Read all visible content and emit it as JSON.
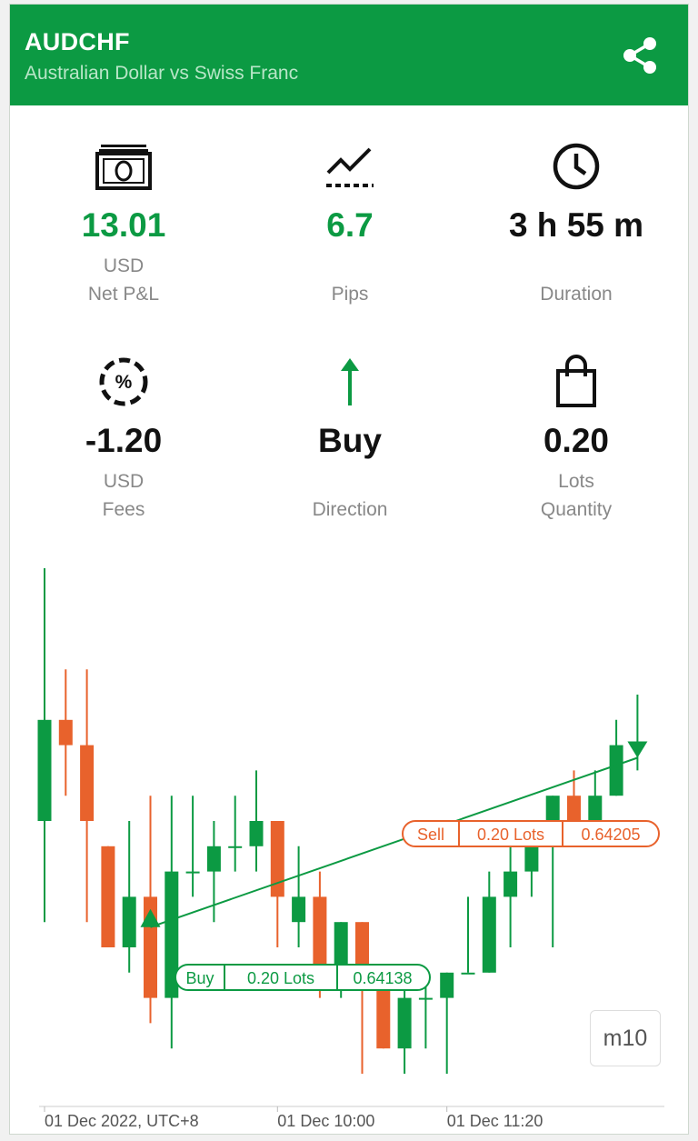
{
  "header": {
    "symbol": "AUDCHF",
    "description": "Australian Dollar vs Swiss Franc"
  },
  "colors": {
    "accent": "#0c9a43",
    "sell": "#e8622c",
    "buy": "#0c9a43"
  },
  "stats": {
    "net_pl": {
      "value": "13.01",
      "unit": "USD",
      "label": "Net P&L",
      "icon": "money-icon"
    },
    "pips": {
      "value": "6.7",
      "label": "Pips",
      "icon": "trend-icon"
    },
    "duration": {
      "value": "3 h 55 m",
      "label": "Duration",
      "icon": "clock-icon"
    },
    "fees": {
      "value": "-1.20",
      "unit": "USD",
      "label": "Fees",
      "icon": "percent-icon"
    },
    "direction": {
      "value": "Buy",
      "label": "Direction",
      "icon": "arrow-up-icon"
    },
    "quantity": {
      "value": "0.20",
      "unit": "Lots",
      "label": "Quantity",
      "icon": "bag-icon"
    }
  },
  "chart": {
    "timeframe": "m10",
    "x_labels": [
      "01 Dec 2022, UTC+8",
      "01 Dec 10:00",
      "01 Dec 11:20"
    ],
    "buy_marker": {
      "side": "Buy",
      "lots": "0.20 Lots",
      "price": "0.64138"
    },
    "sell_marker": {
      "side": "Sell",
      "lots": "0.20 Lots",
      "price": "0.64205"
    }
  },
  "chart_data": {
    "type": "candlestick",
    "candles": [
      {
        "o": 0.6418,
        "h": 0.6428,
        "l": 0.6414,
        "c": 0.6422
      },
      {
        "o": 0.6422,
        "h": 0.6424,
        "l": 0.6419,
        "c": 0.6421
      },
      {
        "o": 0.6421,
        "h": 0.6424,
        "l": 0.6414,
        "c": 0.6418
      },
      {
        "o": 0.6417,
        "h": 0.6417,
        "l": 0.6413,
        "c": 0.6413
      },
      {
        "o": 0.6413,
        "h": 0.6418,
        "l": 0.6412,
        "c": 0.6415
      },
      {
        "o": 0.6415,
        "h": 0.6419,
        "l": 0.641,
        "c": 0.6411
      },
      {
        "o": 0.6411,
        "h": 0.6419,
        "l": 0.6409,
        "c": 0.6416
      },
      {
        "o": 0.6416,
        "h": 0.6419,
        "l": 0.6415,
        "c": 0.6416
      },
      {
        "o": 0.6416,
        "h": 0.6418,
        "l": 0.6414,
        "c": 0.6417
      },
      {
        "o": 0.6417,
        "h": 0.6419,
        "l": 0.6416,
        "c": 0.6417
      },
      {
        "o": 0.6417,
        "h": 0.642,
        "l": 0.6416,
        "c": 0.6418
      },
      {
        "o": 0.6418,
        "h": 0.6418,
        "l": 0.6413,
        "c": 0.6415
      },
      {
        "o": 0.6414,
        "h": 0.6417,
        "l": 0.6413,
        "c": 0.6415
      },
      {
        "o": 0.6415,
        "h": 0.6416,
        "l": 0.6411,
        "c": 0.6412
      },
      {
        "o": 0.6412,
        "h": 0.6414,
        "l": 0.6411,
        "c": 0.6414
      },
      {
        "o": 0.6414,
        "h": 0.6414,
        "l": 0.6408,
        "c": 0.6412
      },
      {
        "o": 0.6412,
        "h": 0.6412,
        "l": 0.6409,
        "c": 0.6409
      },
      {
        "o": 0.6409,
        "h": 0.6412,
        "l": 0.6408,
        "c": 0.6411
      },
      {
        "o": 0.6411,
        "h": 0.6412,
        "l": 0.6409,
        "c": 0.6411
      },
      {
        "o": 0.6411,
        "h": 0.6412,
        "l": 0.6408,
        "c": 0.6412
      },
      {
        "o": 0.6412,
        "h": 0.6415,
        "l": 0.6412,
        "c": 0.6412
      },
      {
        "o": 0.6412,
        "h": 0.6416,
        "l": 0.6412,
        "c": 0.6415
      },
      {
        "o": 0.6415,
        "h": 0.6417,
        "l": 0.6413,
        "c": 0.6416
      },
      {
        "o": 0.6416,
        "h": 0.6418,
        "l": 0.6415,
        "c": 0.6417
      },
      {
        "o": 0.6417,
        "h": 0.6419,
        "l": 0.6413,
        "c": 0.6419
      },
      {
        "o": 0.6419,
        "h": 0.642,
        "l": 0.6417,
        "c": 0.6418
      },
      {
        "o": 0.6418,
        "h": 0.642,
        "l": 0.6417,
        "c": 0.6419
      },
      {
        "o": 0.6419,
        "h": 0.6422,
        "l": 0.6419,
        "c": 0.6421
      },
      {
        "o": 0.6421,
        "h": 0.6423,
        "l": 0.642,
        "c": 0.6421
      }
    ],
    "buy": {
      "index": 5,
      "price": 0.64138
    },
    "sell": {
      "index": 28,
      "price": 0.64205
    },
    "x_label_indices": [
      0,
      11,
      19
    ]
  }
}
